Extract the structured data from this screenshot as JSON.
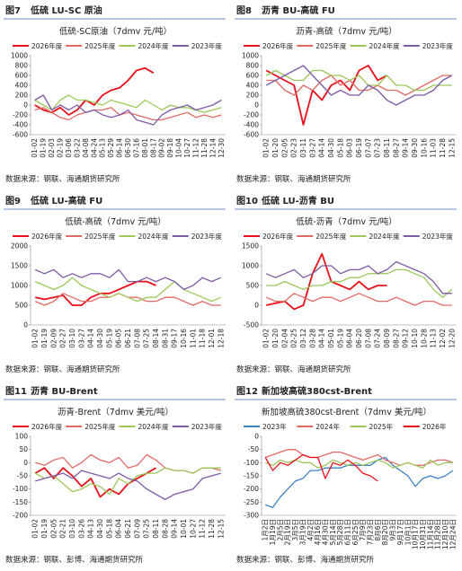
{
  "figures": [
    {
      "figure": "图7",
      "heading": "低硫 LU-SC 原油",
      "source": "数据来源：钢联、海通期货研究所",
      "chart_data": {
        "type": "line",
        "title": "低硫-SC原油（7dmv 元/吨）",
        "categories": [
          "01-02",
          "01-19",
          "02-03",
          "02-19",
          "03-06",
          "03-22",
          "04-08",
          "04-24",
          "05-13",
          "05-29",
          "06-14",
          "06-30",
          "07-16",
          "08-01",
          "08-17",
          "09-02",
          "09-18",
          "10-04",
          "10-27",
          "11-12",
          "11-28",
          "12-14",
          "12-30"
        ],
        "ylim": [
          -600,
          1000
        ],
        "yticks": [
          -600,
          -400,
          -200,
          0,
          200,
          400,
          600,
          800,
          1000
        ],
        "series": [
          {
            "name": "2026年度",
            "color": "#e8101a",
            "values": [
              0,
              -100,
              -150,
              -50,
              -200,
              -100,
              100,
              0,
              200,
              300,
              350,
              500,
              700,
              750,
              650,
              null,
              null,
              null,
              null,
              null,
              null,
              null,
              null
            ]
          },
          {
            "name": "2025年度",
            "color": "#e06a66",
            "values": [
              -100,
              -50,
              -150,
              -250,
              -300,
              -200,
              -150,
              -100,
              -100,
              -50,
              -200,
              -150,
              -200,
              -250,
              -300,
              -300,
              -250,
              -200,
              -150,
              -250,
              -200,
              -250,
              -200
            ]
          },
          {
            "name": "2024年度",
            "color": "#9cc85a",
            "values": [
              100,
              0,
              -100,
              100,
              200,
              100,
              100,
              50,
              0,
              100,
              50,
              0,
              -50,
              100,
              0,
              -100,
              0,
              -50,
              -50,
              -100,
              -150,
              -100,
              -50
            ]
          },
          {
            "name": "2023年度",
            "color": "#7d5ba6",
            "values": [
              100,
              200,
              -100,
              0,
              -100,
              0,
              -150,
              -100,
              -200,
              -250,
              -200,
              -100,
              -300,
              -350,
              -400,
              -200,
              -100,
              -50,
              0,
              -100,
              -50,
              0,
              100
            ]
          }
        ]
      }
    },
    {
      "figure": "图8",
      "heading": "沥青 BU-高硫 FU",
      "source": "数据来源：钢联、海通期货研究所",
      "chart_data": {
        "type": "line",
        "title": "沥青-高硫（7dmv 元/吨）",
        "categories": [
          "01-02",
          "01-20",
          "02-05",
          "02-23",
          "03-11",
          "03-27",
          "04-14",
          "04-30",
          "05-18",
          "06-03",
          "06-19",
          "07-07",
          "07-23",
          "08-11",
          "08-27",
          "09-14",
          "09-30",
          "10-16",
          "11-03",
          "11-28",
          "12-15"
        ],
        "ylim": [
          -600,
          1000
        ],
        "yticks": [
          -600,
          -400,
          -200,
          0,
          200,
          400,
          600,
          800,
          1000
        ],
        "series": [
          {
            "name": "2026年度",
            "color": "#e8101a",
            "values": [
              700,
              600,
              500,
              400,
              -400,
              300,
              100,
              400,
              500,
              300,
              700,
              800,
              500,
              600,
              null,
              null,
              null,
              null,
              null,
              null,
              null
            ]
          },
          {
            "name": "2025年度",
            "color": "#e06a66",
            "values": [
              500,
              500,
              300,
              200,
              400,
              300,
              500,
              600,
              400,
              500,
              300,
              300,
              400,
              300,
              300,
              200,
              300,
              400,
              500,
              600,
              600
            ]
          },
          {
            "name": "2024年度",
            "color": "#9cc85a",
            "values": [
              600,
              700,
              600,
              500,
              500,
              700,
              700,
              600,
              600,
              500,
              600,
              400,
              400,
              600,
              400,
              400,
              300,
              300,
              400,
              400,
              400
            ]
          },
          {
            "name": "2023年度",
            "color": "#7d5ba6",
            "values": [
              400,
              500,
              600,
              700,
              800,
              600,
              400,
              200,
              300,
              200,
              200,
              400,
              300,
              100,
              0,
              100,
              200,
              200,
              300,
              500,
              600
            ]
          }
        ]
      }
    },
    {
      "figure": "图9",
      "heading": "低硫 LU-高硫 FU",
      "source": "数据来源：钢联、海通期货研究所",
      "chart_data": {
        "type": "line",
        "title": "低硫-高硫（7dmv 元/吨）",
        "categories": [
          "01-02",
          "01-19",
          "02-09",
          "02-27",
          "03-10",
          "03-27",
          "04-14",
          "04-30",
          "05-19",
          "06-05",
          "06-21",
          "07-08",
          "07-25",
          "08-14",
          "08-31",
          "09-17",
          "10-16",
          "11-01",
          "11-18",
          "12-01",
          "12-18"
        ],
        "ylim": [
          0,
          2000
        ],
        "yticks": [
          0,
          500,
          1000,
          1500,
          2000
        ],
        "series": [
          {
            "name": "2026年度",
            "color": "#e8101a",
            "values": [
              700,
              650,
              700,
              750,
              500,
              500,
              700,
              800,
              800,
              900,
              1000,
              1100,
              1100,
              1000,
              null,
              null,
              null,
              null,
              null,
              null,
              null
            ]
          },
          {
            "name": "2025年度",
            "color": "#e06a66",
            "values": [
              600,
              500,
              600,
              800,
              700,
              600,
              600,
              700,
              700,
              800,
              700,
              700,
              600,
              600,
              700,
              700,
              600,
              500,
              600,
              500,
              500
            ]
          },
          {
            "name": "2024年度",
            "color": "#9cc85a",
            "values": [
              1100,
              1000,
              900,
              1000,
              1200,
              1000,
              900,
              800,
              700,
              800,
              700,
              600,
              700,
              700,
              900,
              1100,
              900,
              800,
              700,
              600,
              700
            ]
          },
          {
            "name": "2023年度",
            "color": "#7d5ba6",
            "values": [
              1400,
              1300,
              1400,
              1200,
              1300,
              1200,
              1300,
              1300,
              1200,
              1400,
              1100,
              1100,
              1200,
              1100,
              1200,
              1100,
              900,
              1000,
              1200,
              1100,
              1200
            ]
          }
        ]
      }
    },
    {
      "figure": "图10",
      "heading": "低硫 LU-沥青 BU",
      "source": "数据来源：钢联、海通期货研究所",
      "chart_data": {
        "type": "line",
        "title": "低硫-沥青（7dmv 元/吨）",
        "categories": [
          "01-02",
          "01-20",
          "02-04",
          "02-25",
          "03-12",
          "03-28",
          "04-14",
          "05-01",
          "05-19",
          "06-04",
          "06-20",
          "07-08",
          "07-24",
          "08-09",
          "08-27",
          "09-12",
          "10-10",
          "10-28",
          "11-13",
          "12-02",
          "12-20"
        ],
        "ylim": [
          -500,
          1500
        ],
        "yticks": [
          -500,
          0,
          500,
          1000,
          1500
        ],
        "series": [
          {
            "name": "2026年度",
            "color": "#e8101a",
            "values": [
              0,
              50,
              100,
              -100,
              0,
              800,
              1300,
              600,
              500,
              400,
              600,
              400,
              500,
              500,
              null,
              null,
              null,
              null,
              null,
              null,
              null
            ]
          },
          {
            "name": "2025年度",
            "color": "#e06a66",
            "values": [
              200,
              100,
              100,
              300,
              200,
              100,
              200,
              200,
              100,
              200,
              300,
              200,
              100,
              100,
              200,
              100,
              0,
              100,
              100,
              0,
              0
            ]
          },
          {
            "name": "2024年度",
            "color": "#9cc85a",
            "values": [
              500,
              500,
              600,
              500,
              400,
              500,
              500,
              600,
              600,
              700,
              700,
              800,
              800,
              800,
              900,
              900,
              800,
              700,
              400,
              200,
              400
            ]
          },
          {
            "name": "2023年度",
            "color": "#7d5ba6",
            "values": [
              800,
              700,
              800,
              900,
              700,
              800,
              1000,
              1000,
              800,
              900,
              900,
              1000,
              800,
              900,
              1100,
              1000,
              900,
              800,
              600,
              300,
              300
            ]
          }
        ]
      }
    },
    {
      "figure": "图11",
      "heading": "沥青 BU-Brent",
      "source": "数据来源：钢联、彭博、海通期货研究所",
      "chart_data": {
        "type": "line",
        "title": "沥青-Brent（7dmv 美元/吨）",
        "categories": [
          "01-02",
          "01-19",
          "02-05",
          "02-21",
          "03-10",
          "03-26",
          "04-13",
          "04-30",
          "05-18",
          "06-04",
          "06-21",
          "07-09",
          "07-25",
          "08-11",
          "08-28",
          "09-14",
          "10-01",
          "10-27",
          "11-12",
          "11-28",
          "12-15"
        ],
        "ylim": [
          -200,
          100
        ],
        "yticks": [
          -200,
          -150,
          -100,
          -50,
          0,
          50,
          100
        ],
        "series": [
          {
            "name": "2026年度",
            "color": "#e8101a",
            "values": [
              -40,
              -20,
              -60,
              -20,
              -50,
              -90,
              -60,
              -130,
              -100,
              -120,
              -80,
              -60,
              -40,
              -20,
              null,
              null,
              null,
              null,
              null,
              null,
              null
            ]
          },
          {
            "name": "2025年度",
            "color": "#e06a66",
            "values": [
              0,
              -10,
              10,
              20,
              -20,
              0,
              30,
              10,
              0,
              20,
              -20,
              -10,
              30,
              10,
              -20,
              -30,
              -30,
              -40,
              -20,
              -20,
              -30
            ]
          },
          {
            "name": "2024年度",
            "color": "#9cc85a",
            "values": [
              -40,
              -60,
              -50,
              -80,
              -110,
              -100,
              -80,
              -90,
              -120,
              -60,
              -80,
              -50,
              -40,
              -40,
              -20,
              -30,
              -30,
              -40,
              -20,
              -20,
              -20
            ]
          },
          {
            "name": "2023年度",
            "color": "#7d5ba6",
            "values": [
              -70,
              -60,
              -50,
              -40,
              -60,
              -30,
              -40,
              -50,
              -60,
              -40,
              -60,
              -70,
              -100,
              -120,
              -140,
              -120,
              -110,
              -100,
              -60,
              -50,
              -40
            ]
          }
        ]
      }
    },
    {
      "figure": "图12",
      "heading": "新加坡高硫380cst-Brent",
      "source": "数据来源：钢联、彭博、海通期货研究所",
      "chart_data": {
        "type": "line",
        "title": "新加坡高硫380cst-Brent（7dmv 美元/吨）",
        "categories": [
          "1月2日",
          "1月19日",
          "2月5日",
          "2月19日",
          "3月5日",
          "3月19日",
          "4月2日",
          "4月16日",
          "4月30日",
          "5月14日",
          "5月28日",
          "6月11日",
          "6月25日",
          "7月9日",
          "7月23日",
          "8月6日",
          "8月20日",
          "9月3日",
          "9月17日",
          "10月1日",
          "10月17日",
          "10月31日",
          "11月14日",
          "11月28日",
          "12月10日",
          "12月24日"
        ],
        "ylim": [
          -300,
          0
        ],
        "yticks": [
          -300,
          -250,
          -200,
          -150,
          -100,
          -50,
          0
        ],
        "series": [
          {
            "name": "2023年",
            "color": "#3f82c4",
            "values": [
              -260,
              -270,
              -230,
              -200,
              -170,
              -160,
              -130,
              -130,
              -120,
              -120,
              -120,
              -110,
              -110,
              -110,
              -110,
              -90,
              -80,
              -110,
              -130,
              -150,
              -190,
              -160,
              -150,
              -160,
              -150,
              -130
            ]
          },
          {
            "name": "2024年",
            "color": "#e06a66",
            "values": [
              -80,
              -70,
              -60,
              -50,
              -50,
              -70,
              -80,
              -80,
              -70,
              -60,
              -60,
              -70,
              -80,
              -90,
              -80,
              -70,
              -90,
              -100,
              -110,
              -100,
              -110,
              -110,
              -100,
              -90,
              -90,
              -100
            ]
          },
          {
            "name": "2025年",
            "color": "#9cc85a",
            "values": [
              -100,
              -110,
              -90,
              -100,
              -90,
              -100,
              -100,
              -120,
              -110,
              -90,
              -100,
              -110,
              -100,
              -110,
              -100,
              -90,
              -100,
              -120,
              -110,
              -100,
              -110,
              -120,
              -90,
              -110,
              -100,
              -100
            ]
          },
          {
            "name": "2026年",
            "color": "#e8101a",
            "values": [
              -80,
              -130,
              -100,
              -110,
              -90,
              -70,
              -80,
              -80,
              -160,
              -100,
              -110,
              -90,
              -110,
              -140,
              -150,
              -170,
              null,
              null,
              null,
              null,
              null,
              null,
              null,
              null,
              null,
              null
            ]
          }
        ]
      }
    }
  ]
}
